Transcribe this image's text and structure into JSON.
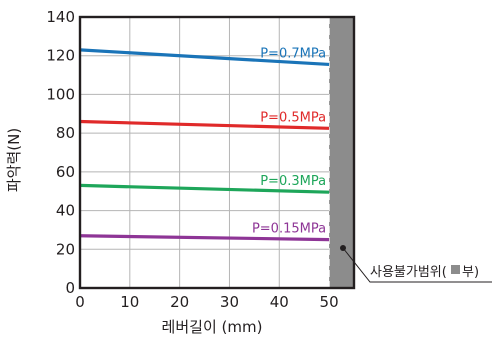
{
  "chart_data": {
    "type": "line",
    "title": "",
    "xlabel": "레버길이 (mm)",
    "ylabel": "파악력(N)",
    "xlim": [
      0,
      55
    ],
    "ylim": [
      0,
      140
    ],
    "x_ticks": [
      "0",
      "10",
      "20",
      "30",
      "40",
      "50"
    ],
    "y_ticks": [
      "0",
      "20",
      "40",
      "60",
      "80",
      "100",
      "120",
      "140"
    ],
    "grid": true,
    "series": [
      {
        "name": "P=0.7MPa",
        "color": "#1a74b8",
        "x": [
          0,
          50
        ],
        "y": [
          123,
          115.5
        ]
      },
      {
        "name": "P=0.5MPa",
        "color": "#e02a2a",
        "x": [
          0,
          50
        ],
        "y": [
          86,
          82.5
        ]
      },
      {
        "name": "P=0.3MPa",
        "color": "#1ea65a",
        "x": [
          0,
          50
        ],
        "y": [
          53,
          49.5
        ]
      },
      {
        "name": "P=0.15MPa",
        "color": "#8e3596",
        "x": [
          0,
          50
        ],
        "y": [
          27,
          25
        ]
      }
    ],
    "unusable_region": {
      "x_range": [
        50,
        55
      ],
      "color": "#8c8c8c",
      "label": "사용불가범위(",
      "label_suffix": "부)"
    }
  }
}
